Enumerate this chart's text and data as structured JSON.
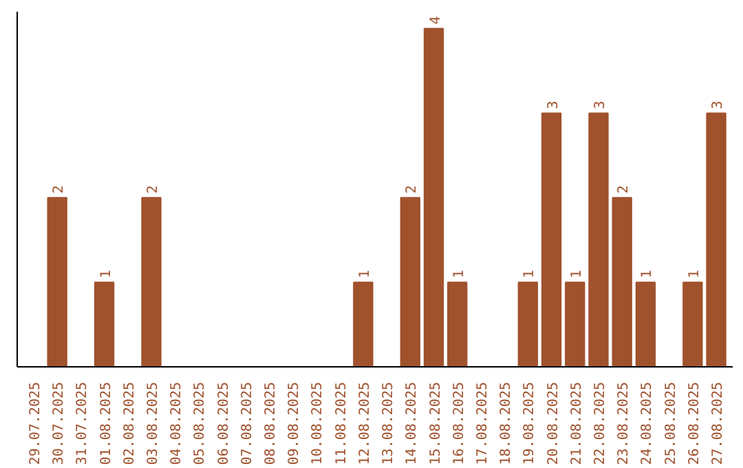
{
  "chart_data": {
    "type": "bar",
    "categories": [
      "29.07.2025",
      "30.07.2025",
      "31.07.2025",
      "01.08.2025",
      "02.08.2025",
      "03.08.2025",
      "04.08.2025",
      "05.08.2025",
      "06.08.2025",
      "07.08.2025",
      "08.08.2025",
      "09.08.2025",
      "10.08.2025",
      "11.08.2025",
      "12.08.2025",
      "13.08.2025",
      "14.08.2025",
      "15.08.2025",
      "16.08.2025",
      "17.08.2025",
      "18.08.2025",
      "19.08.2025",
      "20.08.2025",
      "21.08.2025",
      "22.08.2025",
      "23.08.2025",
      "24.08.2025",
      "25.08.2025",
      "26.08.2025",
      "27.08.2025"
    ],
    "values": [
      0,
      2,
      0,
      1,
      0,
      2,
      0,
      0,
      0,
      0,
      0,
      0,
      0,
      0,
      1,
      0,
      2,
      4,
      1,
      0,
      0,
      1,
      3,
      1,
      3,
      2,
      1,
      0,
      1,
      3
    ],
    "value_labels": [
      null,
      "2",
      null,
      "1",
      null,
      "2",
      null,
      null,
      null,
      null,
      null,
      null,
      null,
      null,
      "1",
      null,
      "2",
      "4",
      "1",
      null,
      null,
      "1",
      "3",
      "1",
      "3",
      "2",
      "1",
      null,
      "1",
      "3"
    ],
    "color": "#a0522d",
    "ylim": [
      0,
      4.2
    ],
    "grid": false
  }
}
